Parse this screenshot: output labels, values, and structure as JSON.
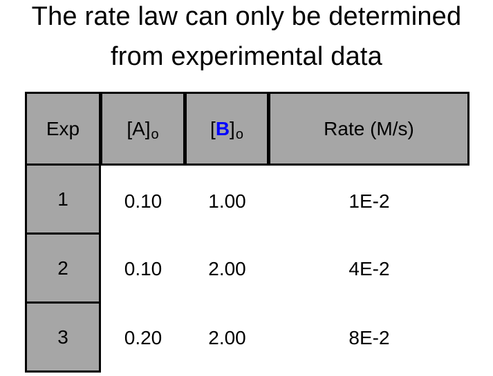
{
  "title": {
    "line1": "The rate law can only be determined",
    "line2": "from experimental data"
  },
  "table": {
    "headers": {
      "exp": "Exp",
      "a_open": "[A]",
      "a_sub": "o",
      "b_open": "[",
      "b_letter": "B",
      "b_close": "]",
      "b_sub": "o",
      "rate": "Rate (M/s)"
    },
    "rows": [
      {
        "exp": "1",
        "a": "0.10",
        "b": "1.00",
        "rate": "1E-2"
      },
      {
        "exp": "2",
        "a": "0.10",
        "b": "2.00",
        "rate": "4E-2"
      },
      {
        "exp": "3",
        "a": "0.20",
        "b": "2.00",
        "rate": "8E-2"
      }
    ]
  },
  "colors": {
    "header_bg": "#a6a6a6",
    "b_highlight": "#0000ff"
  }
}
